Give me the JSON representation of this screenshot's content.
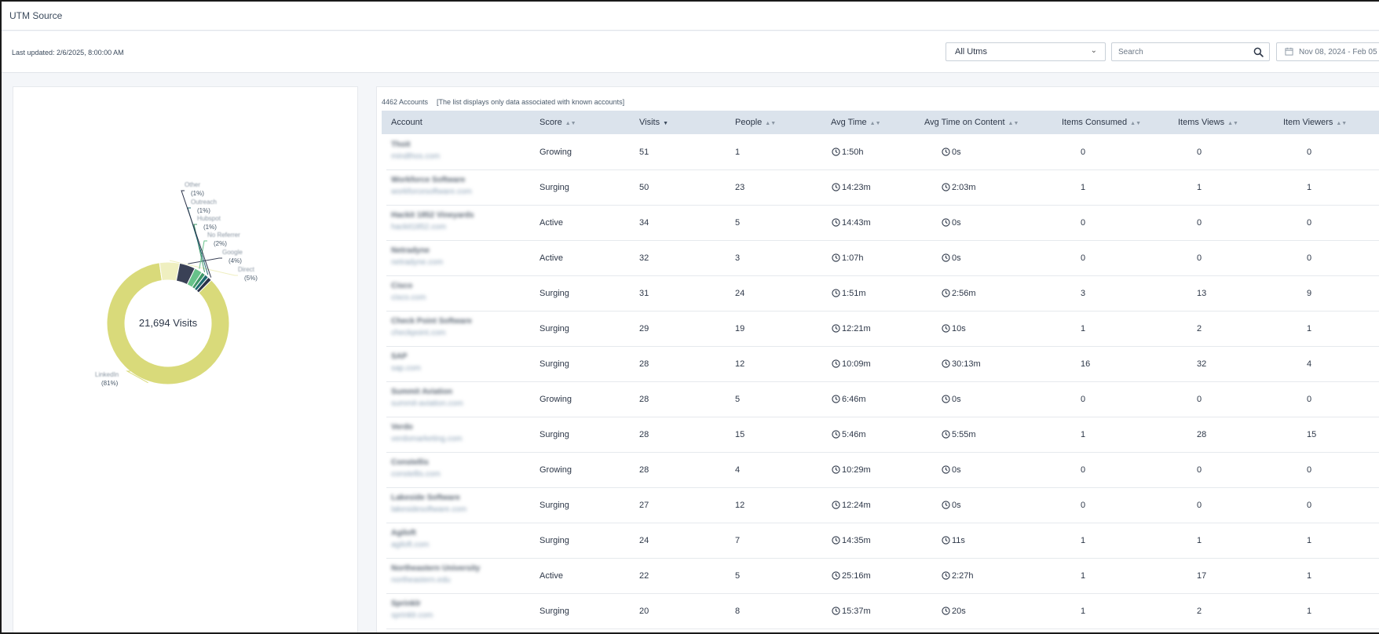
{
  "header": {
    "title": "UTM Source"
  },
  "toolbar": {
    "last_updated": "Last updated: 2/6/2025, 8:00:00 AM",
    "utm_filter": "All Utms",
    "search_placeholder": "Search",
    "date_range": "Nov 08, 2024 - Feb 05"
  },
  "chart_data": {
    "type": "pie",
    "center_label": "21,694 Visits",
    "slices": [
      {
        "name": "LinkedIn",
        "percent": 81,
        "color": "#d9da7a"
      },
      {
        "name": "Direct",
        "percent": 5,
        "color": "#efefc0"
      },
      {
        "name": "Google",
        "percent": 4,
        "color": "#3a4156"
      },
      {
        "name": "No Referrer",
        "percent": 2,
        "color": "#67c28a"
      },
      {
        "name": "Hubspot",
        "percent": 1,
        "color": "#3f9868"
      },
      {
        "name": "Outreach",
        "percent": 1,
        "color": "#1f6a70"
      },
      {
        "name": "Other",
        "percent": 1,
        "color": "#2a3148"
      }
    ]
  },
  "table": {
    "summary": "4462 Accounts",
    "note": "[The list displays only data associated with known accounts]",
    "columns": [
      "Account",
      "Score",
      "Visits",
      "People",
      "Avg Time",
      "Avg Time on Content",
      "Items Consumed",
      "Items Views",
      "Item Viewers"
    ],
    "rows": [
      {
        "name": "Thoit",
        "domain": "mindthos.com",
        "score": "Growing",
        "visits": "51",
        "people": "1",
        "avg_time": "1:50h",
        "avg_time_content": "0s",
        "consumed": "0",
        "views": "0",
        "viewers": "0"
      },
      {
        "name": "Workforce Software",
        "domain": "workforcesoftware.com",
        "score": "Surging",
        "visits": "50",
        "people": "23",
        "avg_time": "14:23m",
        "avg_time_content": "2:03m",
        "consumed": "1",
        "views": "1",
        "viewers": "1"
      },
      {
        "name": "Hackit 1852 Vineyards",
        "domain": "hackit1852.com",
        "score": "Active",
        "visits": "34",
        "people": "5",
        "avg_time": "14:43m",
        "avg_time_content": "0s",
        "consumed": "0",
        "views": "0",
        "viewers": "0"
      },
      {
        "name": "Netradyne",
        "domain": "netradyne.com",
        "score": "Active",
        "visits": "32",
        "people": "3",
        "avg_time": "1:07h",
        "avg_time_content": "0s",
        "consumed": "0",
        "views": "0",
        "viewers": "0"
      },
      {
        "name": "Cisco",
        "domain": "cisco.com",
        "score": "Surging",
        "visits": "31",
        "people": "24",
        "avg_time": "1:51m",
        "avg_time_content": "2:56m",
        "consumed": "3",
        "views": "13",
        "viewers": "9"
      },
      {
        "name": "Check Point Software",
        "domain": "checkpoint.com",
        "score": "Surging",
        "visits": "29",
        "people": "19",
        "avg_time": "12:21m",
        "avg_time_content": "10s",
        "consumed": "1",
        "views": "2",
        "viewers": "1"
      },
      {
        "name": "SAP",
        "domain": "sap.com",
        "score": "Surging",
        "visits": "28",
        "people": "12",
        "avg_time": "10:09m",
        "avg_time_content": "30:13m",
        "consumed": "16",
        "views": "32",
        "viewers": "4"
      },
      {
        "name": "Summit Aviation",
        "domain": "summit-aviation.com",
        "score": "Growing",
        "visits": "28",
        "people": "5",
        "avg_time": "6:46m",
        "avg_time_content": "0s",
        "consumed": "0",
        "views": "0",
        "viewers": "0"
      },
      {
        "name": "Verdo",
        "domain": "verdomarketing.com",
        "score": "Surging",
        "visits": "28",
        "people": "15",
        "avg_time": "5:46m",
        "avg_time_content": "5:55m",
        "consumed": "1",
        "views": "28",
        "viewers": "15"
      },
      {
        "name": "Constellis",
        "domain": "constellis.com",
        "score": "Growing",
        "visits": "28",
        "people": "4",
        "avg_time": "10:29m",
        "avg_time_content": "0s",
        "consumed": "0",
        "views": "0",
        "viewers": "0"
      },
      {
        "name": "Lakeside Software",
        "domain": "lakesidesoftware.com",
        "score": "Surging",
        "visits": "27",
        "people": "12",
        "avg_time": "12:24m",
        "avg_time_content": "0s",
        "consumed": "0",
        "views": "0",
        "viewers": "0"
      },
      {
        "name": "Agiloft",
        "domain": "agiloft.com",
        "score": "Surging",
        "visits": "24",
        "people": "7",
        "avg_time": "14:35m",
        "avg_time_content": "11s",
        "consumed": "1",
        "views": "1",
        "viewers": "1"
      },
      {
        "name": "Northeastern University",
        "domain": "northeastern.edu",
        "score": "Active",
        "visits": "22",
        "people": "5",
        "avg_time": "25:16m",
        "avg_time_content": "2:27h",
        "consumed": "1",
        "views": "17",
        "viewers": "1"
      },
      {
        "name": "Sprinklr",
        "domain": "sprinklr.com",
        "score": "Surging",
        "visits": "20",
        "people": "8",
        "avg_time": "15:37m",
        "avg_time_content": "20s",
        "consumed": "1",
        "views": "2",
        "viewers": "1"
      }
    ]
  }
}
